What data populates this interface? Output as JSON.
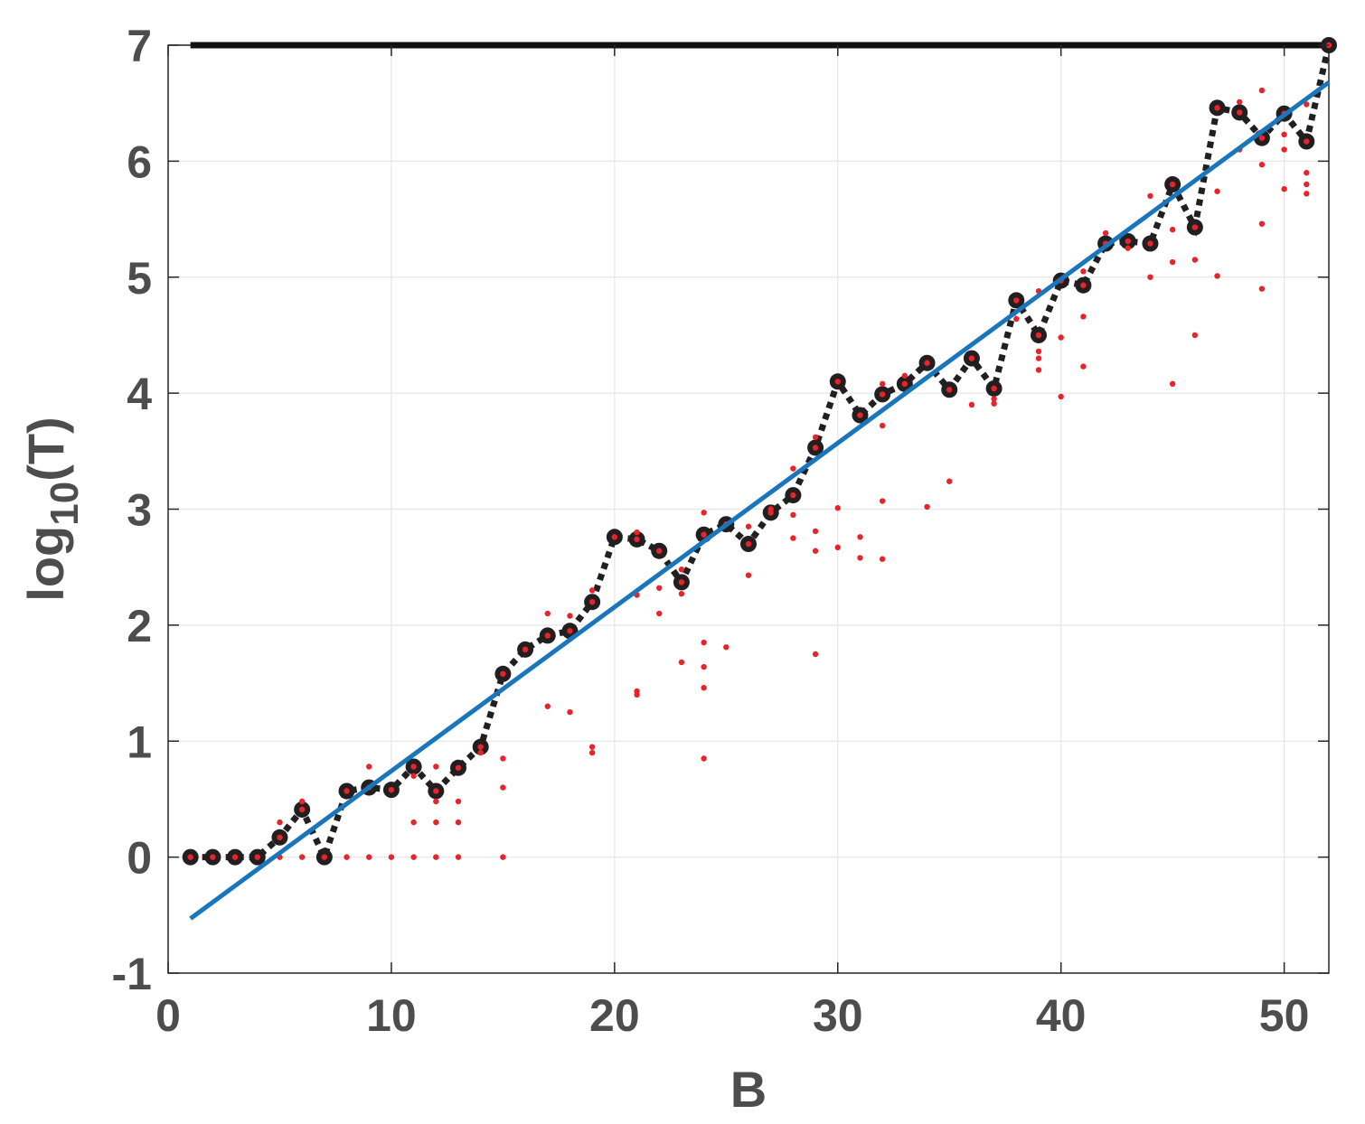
{
  "chart_data": {
    "type": "scatter",
    "title": "",
    "xlabel": "B",
    "ylabel_main": "log",
    "ylabel_sub": "10",
    "ylabel_arg": "(T)",
    "xlim": [
      0,
      52
    ],
    "ylim": [
      -1,
      7
    ],
    "xticks": [
      0,
      10,
      20,
      30,
      40,
      50
    ],
    "yticks": [
      -1,
      0,
      1,
      2,
      3,
      4,
      5,
      6,
      7
    ],
    "grid": true,
    "legend": "none",
    "colors": {
      "mean_series": "#231f20",
      "samples": "#e8242b",
      "fit": "#1a76bc",
      "ceiling": "#111111",
      "grid": "#e6e6e6",
      "axis": "#262626",
      "text": "#4d4d4d"
    },
    "series": [
      {
        "style": "dotted-line-with-markers",
        "x": [
          1,
          2,
          3,
          4,
          5,
          6,
          7,
          8,
          9,
          10,
          11,
          12,
          13,
          14,
          15,
          16,
          17,
          18,
          19,
          20,
          21,
          22,
          23,
          24,
          25,
          26,
          27,
          28,
          29,
          30,
          31,
          32,
          33,
          34,
          35,
          36,
          37,
          38,
          39,
          40,
          41,
          42,
          43,
          44,
          45,
          46,
          47,
          48,
          49,
          50,
          51,
          52
        ],
        "y": [
          0,
          0,
          0,
          0,
          0.17,
          0.41,
          0,
          0.57,
          0.6,
          0.58,
          0.78,
          0.57,
          0.77,
          0.95,
          1.58,
          1.79,
          1.91,
          1.95,
          2.2,
          2.76,
          2.74,
          2.64,
          2.37,
          2.78,
          2.87,
          2.7,
          2.97,
          3.12,
          3.53,
          4.1,
          3.81,
          3.99,
          4.08,
          4.26,
          4.03,
          4.3,
          4.04,
          4.8,
          4.5,
          4.97,
          4.93,
          5.29,
          5.31,
          5.29,
          5.8,
          5.43,
          6.46,
          6.42,
          6.2,
          6.41,
          6.17,
          7.0
        ]
      },
      {
        "style": "points",
        "points": [
          [
            1,
            0
          ],
          [
            2,
            0
          ],
          [
            3,
            0
          ],
          [
            4,
            0
          ],
          [
            5,
            0.17
          ],
          [
            5,
            0.3
          ],
          [
            5,
            0
          ],
          [
            6,
            0.41
          ],
          [
            6,
            0.48
          ],
          [
            6,
            0
          ],
          [
            7,
            0
          ],
          [
            8,
            0.57
          ],
          [
            8,
            0
          ],
          [
            9,
            0.6
          ],
          [
            9,
            0.78
          ],
          [
            9,
            0
          ],
          [
            10,
            0.58
          ],
          [
            10,
            0
          ],
          [
            11,
            0.78
          ],
          [
            11,
            0.7
          ],
          [
            11,
            0.3
          ],
          [
            11,
            0
          ],
          [
            12,
            0.57
          ],
          [
            12,
            0.78
          ],
          [
            12,
            0.48
          ],
          [
            12,
            0.3
          ],
          [
            12,
            0
          ],
          [
            13,
            0.77
          ],
          [
            13,
            0.48
          ],
          [
            13,
            0.3
          ],
          [
            13,
            0
          ],
          [
            14,
            0.95
          ],
          [
            14,
            0.9
          ],
          [
            15,
            1.58
          ],
          [
            15,
            0.85
          ],
          [
            15,
            0.6
          ],
          [
            15,
            0
          ],
          [
            16,
            1.79
          ],
          [
            17,
            1.91
          ],
          [
            17,
            2.1
          ],
          [
            17,
            1.3
          ],
          [
            18,
            1.95
          ],
          [
            18,
            2.08
          ],
          [
            18,
            1.25
          ],
          [
            19,
            2.2
          ],
          [
            19,
            2.3
          ],
          [
            19,
            0.95
          ],
          [
            19,
            0.9
          ],
          [
            20,
            2.76
          ],
          [
            21,
            2.74
          ],
          [
            21,
            2.8
          ],
          [
            21,
            2.26
          ],
          [
            21,
            1.43
          ],
          [
            21,
            1.4
          ],
          [
            22,
            2.64
          ],
          [
            22,
            2.32
          ],
          [
            22,
            2.1
          ],
          [
            23,
            2.37
          ],
          [
            23,
            2.48
          ],
          [
            23,
            2.27
          ],
          [
            23,
            1.68
          ],
          [
            24,
            2.78
          ],
          [
            24,
            2.97
          ],
          [
            24,
            1.85
          ],
          [
            24,
            1.64
          ],
          [
            24,
            1.46
          ],
          [
            24,
            0.85
          ],
          [
            25,
            2.87
          ],
          [
            25,
            1.81
          ],
          [
            26,
            2.7
          ],
          [
            26,
            2.85
          ],
          [
            26,
            2.43
          ],
          [
            27,
            2.97
          ],
          [
            27,
            3.0
          ],
          [
            28,
            3.12
          ],
          [
            28,
            3.35
          ],
          [
            28,
            2.95
          ],
          [
            28,
            2.75
          ],
          [
            29,
            3.53
          ],
          [
            29,
            3.62
          ],
          [
            29,
            2.81
          ],
          [
            29,
            2.64
          ],
          [
            29,
            1.75
          ],
          [
            30,
            4.1
          ],
          [
            30,
            3.01
          ],
          [
            30,
            2.67
          ],
          [
            31,
            3.81
          ],
          [
            31,
            2.76
          ],
          [
            31,
            2.58
          ],
          [
            32,
            3.99
          ],
          [
            32,
            4.08
          ],
          [
            32,
            3.72
          ],
          [
            32,
            3.07
          ],
          [
            32,
            2.57
          ],
          [
            33,
            4.08
          ],
          [
            33,
            4.15
          ],
          [
            34,
            4.26
          ],
          [
            34,
            3.02
          ],
          [
            35,
            4.03
          ],
          [
            35,
            3.24
          ],
          [
            36,
            4.3
          ],
          [
            36,
            3.9
          ],
          [
            37,
            4.04
          ],
          [
            37,
            3.95
          ],
          [
            37,
            3.91
          ],
          [
            38,
            4.8
          ],
          [
            38,
            4.64
          ],
          [
            39,
            4.5
          ],
          [
            39,
            4.88
          ],
          [
            39,
            4.36
          ],
          [
            39,
            4.3
          ],
          [
            39,
            4.2
          ],
          [
            40,
            4.97
          ],
          [
            40,
            4.48
          ],
          [
            40,
            3.97
          ],
          [
            41,
            4.93
          ],
          [
            41,
            5.05
          ],
          [
            41,
            4.66
          ],
          [
            41,
            4.23
          ],
          [
            42,
            5.29
          ],
          [
            42,
            5.38
          ],
          [
            43,
            5.31
          ],
          [
            43,
            5.25
          ],
          [
            44,
            5.29
          ],
          [
            44,
            5.7
          ],
          [
            44,
            5.0
          ],
          [
            45,
            5.8
          ],
          [
            45,
            5.41
          ],
          [
            45,
            5.13
          ],
          [
            45,
            4.08
          ],
          [
            46,
            5.43
          ],
          [
            46,
            5.15
          ],
          [
            46,
            4.5
          ],
          [
            47,
            6.46
          ],
          [
            47,
            5.74
          ],
          [
            47,
            5.01
          ],
          [
            48,
            6.42
          ],
          [
            48,
            6.51
          ],
          [
            48,
            6.1
          ],
          [
            49,
            6.2
          ],
          [
            49,
            6.61
          ],
          [
            49,
            5.97
          ],
          [
            49,
            5.46
          ],
          [
            49,
            4.9
          ],
          [
            50,
            6.41
          ],
          [
            50,
            6.23
          ],
          [
            50,
            6.1
          ],
          [
            50,
            5.76
          ],
          [
            51,
            6.17
          ],
          [
            51,
            6.49
          ],
          [
            51,
            5.9
          ],
          [
            51,
            5.8
          ],
          [
            51,
            5.72
          ],
          [
            52,
            7.0
          ]
        ]
      },
      {
        "style": "line",
        "x": [
          1,
          52
        ],
        "y": [
          -0.53,
          6.68
        ]
      },
      {
        "style": "thick-line",
        "x": [
          1,
          52
        ],
        "y": [
          7,
          7
        ]
      }
    ]
  }
}
